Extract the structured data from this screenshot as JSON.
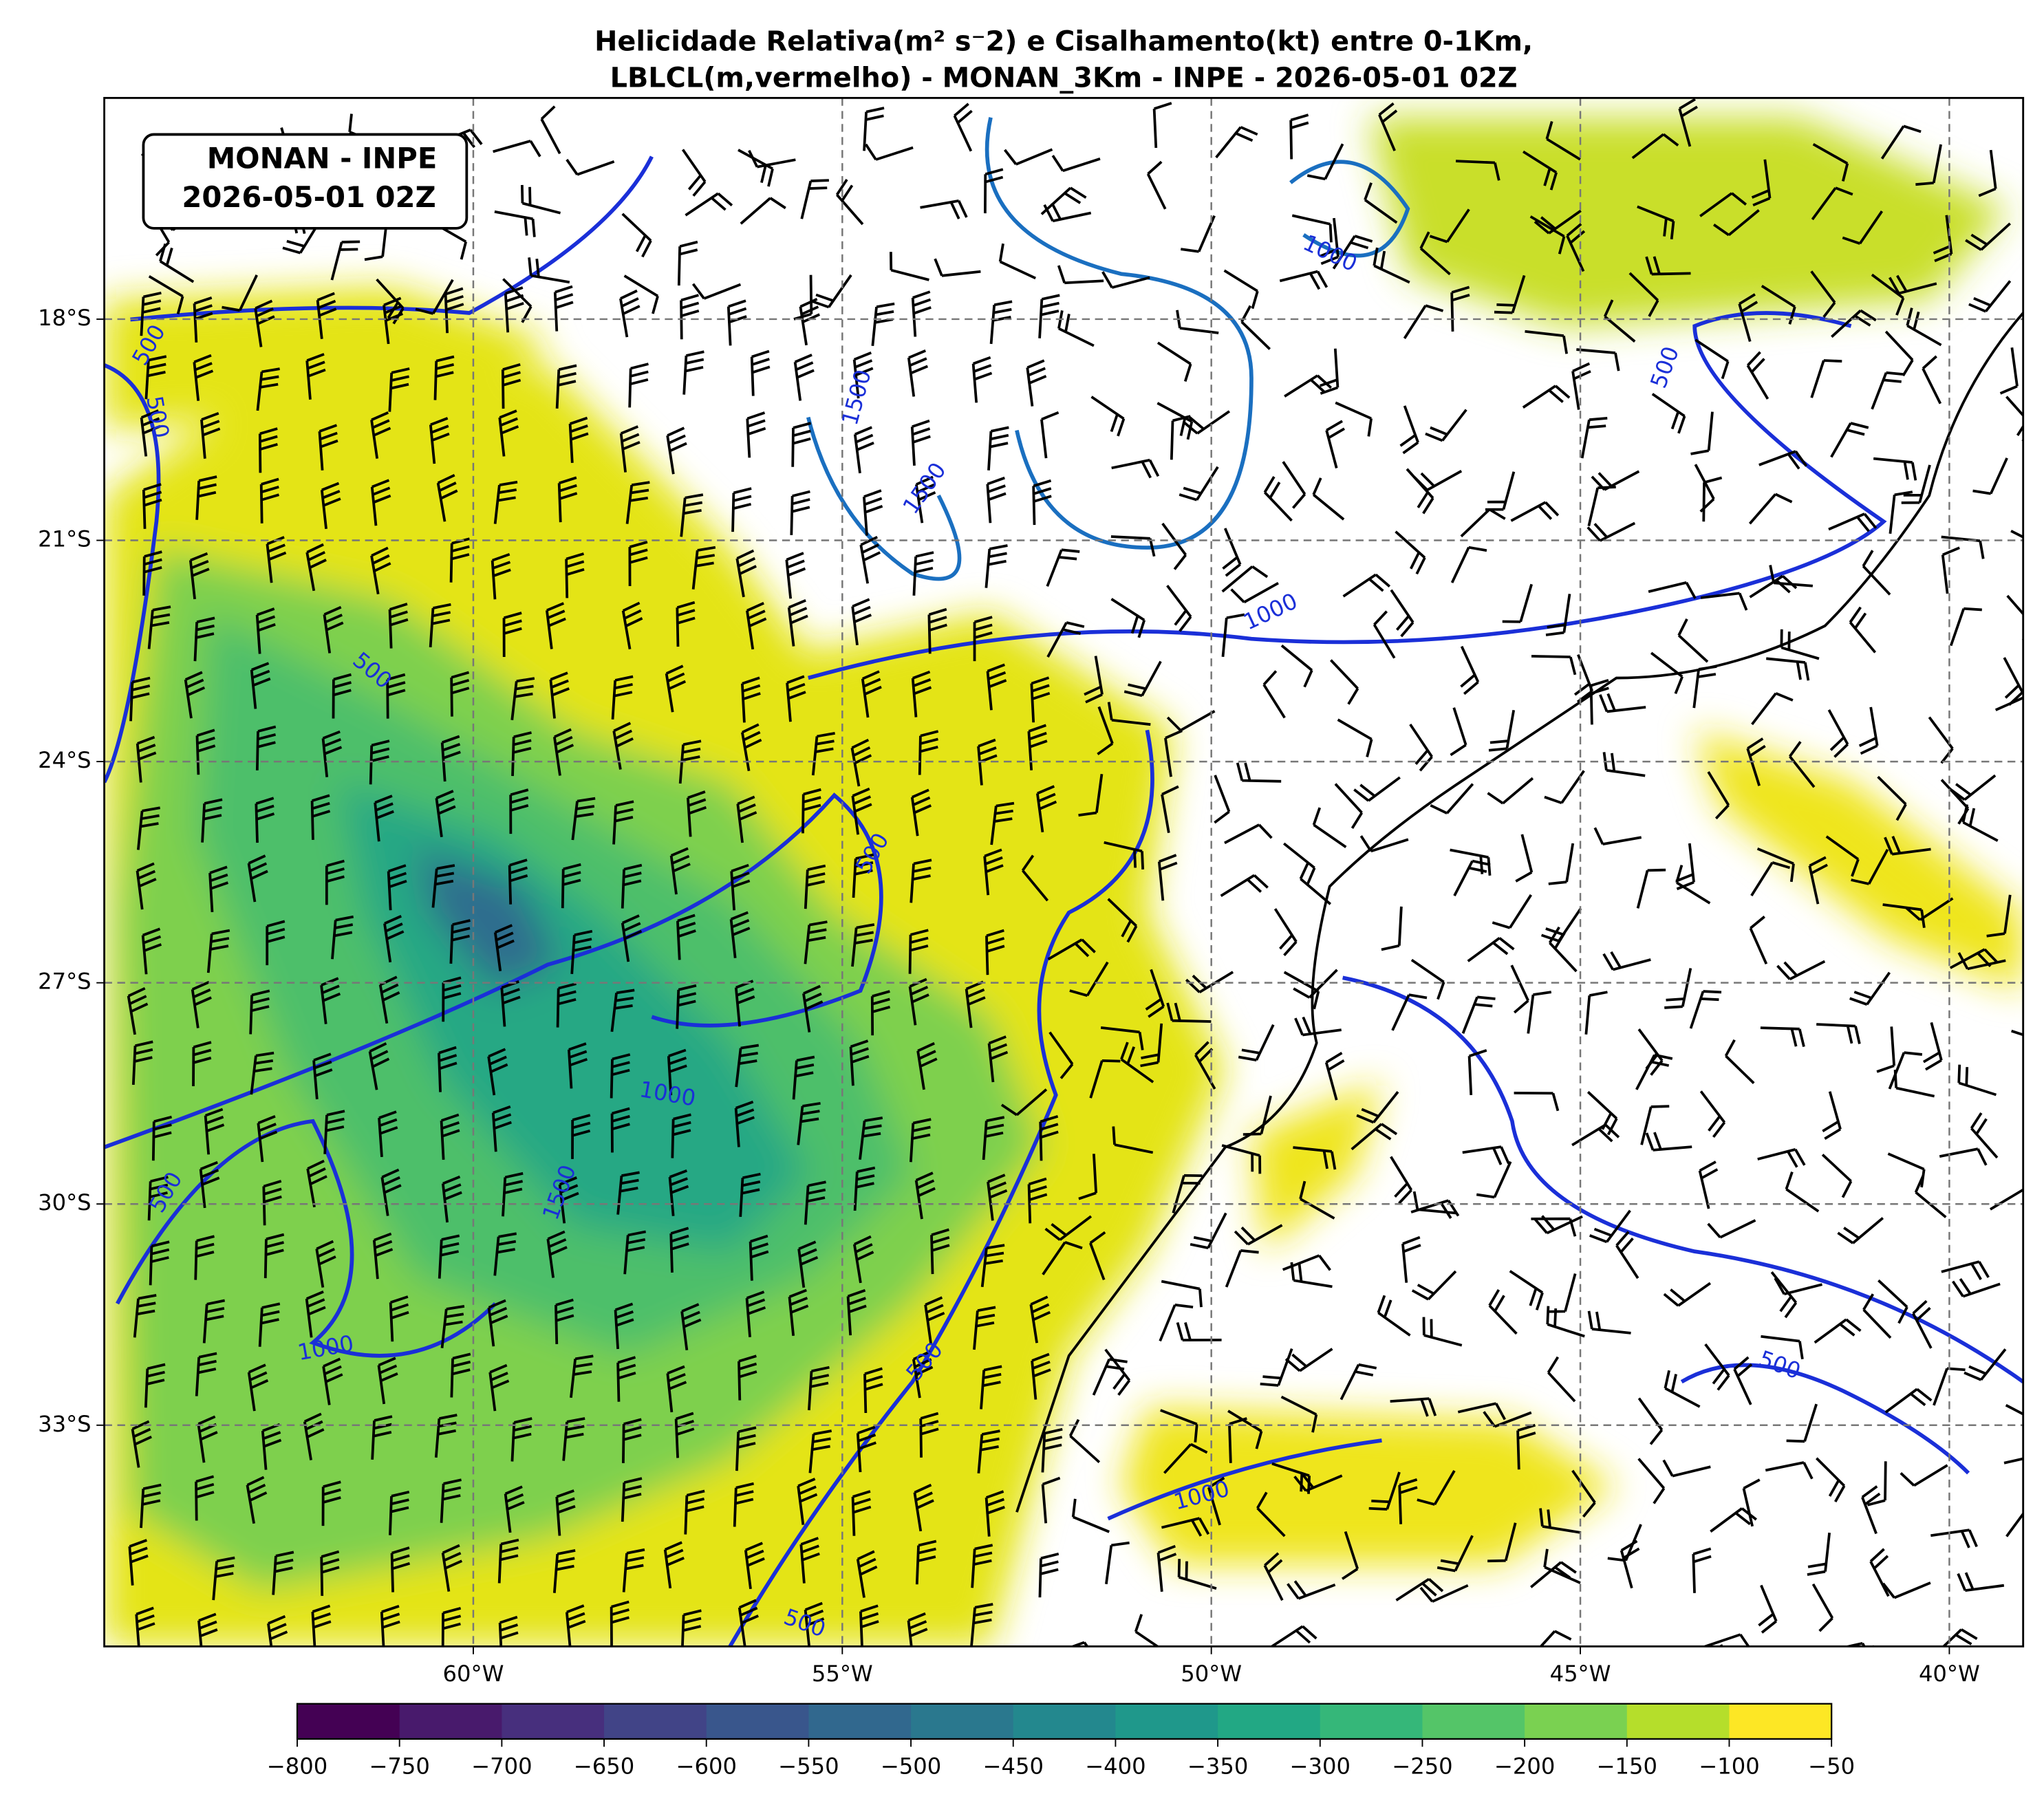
{
  "map": {
    "title": [
      "Helicidade Relativa(m² s⁻2) e Cisalhamento(kt) entre 0-1Km,",
      "LBLCL(m,vermelho) - MONAN_3Km - INPE - 2026-05-01 02Z"
    ],
    "label_box": [
      "MONAN - INPE",
      "2026-05-01 02Z"
    ],
    "xlim": [
      -65,
      -39
    ],
    "ylim": [
      -36,
      -15
    ],
    "xticks": [
      {
        "value": -60,
        "label": "60°W"
      },
      {
        "value": -55,
        "label": "55°W"
      },
      {
        "value": -50,
        "label": "50°W"
      },
      {
        "value": -45,
        "label": "45°W"
      },
      {
        "value": -40,
        "label": "40°W"
      }
    ],
    "yticks": [
      {
        "value": -18,
        "label": "18°S"
      },
      {
        "value": -21,
        "label": "21°S"
      },
      {
        "value": -24,
        "label": "24°S"
      },
      {
        "value": -27,
        "label": "27°S"
      },
      {
        "value": -30,
        "label": "30°S"
      },
      {
        "value": -33,
        "label": "33°S"
      }
    ],
    "contour_labels": [
      500,
      500,
      1000,
      1500,
      1500,
      500,
      1000,
      500,
      500,
      1000,
      1500,
      500,
      1000,
      500,
      500,
      1000,
      500
    ]
  },
  "colorbar": {
    "ticks": [
      {
        "value": -800,
        "label": "−800"
      },
      {
        "value": -750,
        "label": "−750"
      },
      {
        "value": -700,
        "label": "−700"
      },
      {
        "value": -650,
        "label": "−650"
      },
      {
        "value": -600,
        "label": "−600"
      },
      {
        "value": -550,
        "label": "−550"
      },
      {
        "value": -500,
        "label": "−500"
      },
      {
        "value": -450,
        "label": "−450"
      },
      {
        "value": -400,
        "label": "−400"
      },
      {
        "value": -350,
        "label": "−350"
      },
      {
        "value": -300,
        "label": "−300"
      },
      {
        "value": -250,
        "label": "−250"
      },
      {
        "value": -200,
        "label": "−200"
      },
      {
        "value": -150,
        "label": "−150"
      },
      {
        "value": -100,
        "label": "−100"
      },
      {
        "value": -50,
        "label": "−50"
      }
    ],
    "colors": [
      "#440154",
      "#481a6c",
      "#472f7d",
      "#414487",
      "#39568c",
      "#31688e",
      "#2a788e",
      "#23888e",
      "#1f988b",
      "#22a884",
      "#35b779",
      "#54c568",
      "#7ad151",
      "#b5de2b",
      "#fde725"
    ]
  }
}
